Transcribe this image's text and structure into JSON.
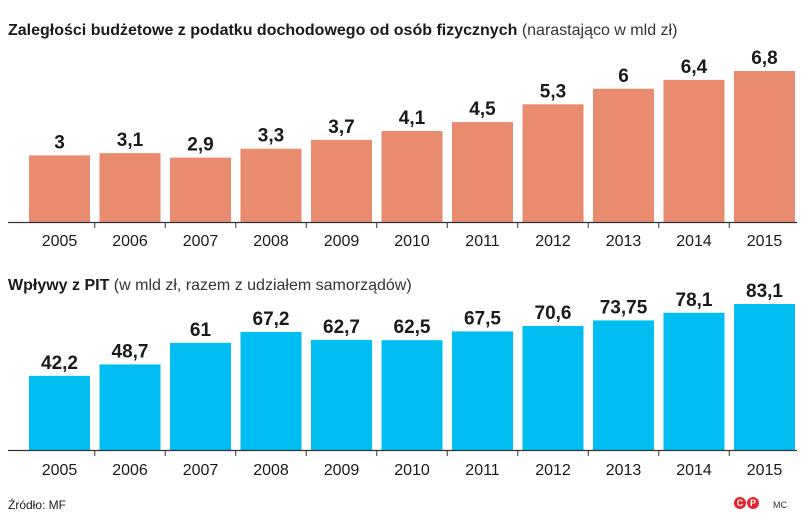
{
  "charts": {
    "top": {
      "title": "Zaległości budżetowe z podatku dochodowego od osób fizycznych",
      "subtitle": "(narastająco w mld zł)"
    },
    "bottom": {
      "title": "Wpływy z PIT",
      "subtitle": "(w mld zł, razem z udziałem samorządów)"
    }
  },
  "source": "Źródło: MF",
  "logo_letters": [
    "C",
    "P"
  ],
  "author": "MC",
  "colors": {
    "top_bar": "#e98b6f",
    "bottom_bar": "#00bdf2",
    "axis": "#333333"
  },
  "chart_data": [
    {
      "type": "bar",
      "title": "Zaległości budżetowe z podatku dochodowego od osób fizycznych (narastająco w mld zł)",
      "categories": [
        "2005",
        "2006",
        "2007",
        "2008",
        "2009",
        "2010",
        "2011",
        "2012",
        "2013",
        "2014",
        "2015"
      ],
      "values": [
        3,
        3.1,
        2.9,
        3.3,
        3.7,
        4.1,
        4.5,
        5.3,
        6,
        6.4,
        6.8
      ],
      "labels": [
        "3",
        "3,1",
        "2,9",
        "3,3",
        "3,7",
        "4,1",
        "4,5",
        "5,3",
        "6",
        "6,4",
        "6,8"
      ],
      "xlabel": "",
      "ylabel": "mld zł",
      "ylim": [
        0,
        6.8
      ]
    },
    {
      "type": "bar",
      "title": "Wpływy z PIT (w mld zł, razem z udziałem samorządów)",
      "categories": [
        "2005",
        "2006",
        "2007",
        "2008",
        "2009",
        "2010",
        "2011",
        "2012",
        "2013",
        "2014",
        "2015"
      ],
      "values": [
        42.2,
        48.7,
        61,
        67.2,
        62.7,
        62.5,
        67.5,
        70.6,
        73.75,
        78.1,
        83.1
      ],
      "labels": [
        "42,2",
        "48,7",
        "61",
        "67,2",
        "62,7",
        "62,5",
        "67,5",
        "70,6",
        "73,75",
        "78,1",
        "83,1"
      ],
      "xlabel": "",
      "ylabel": "mld zł",
      "ylim": [
        0,
        83.1
      ]
    }
  ]
}
